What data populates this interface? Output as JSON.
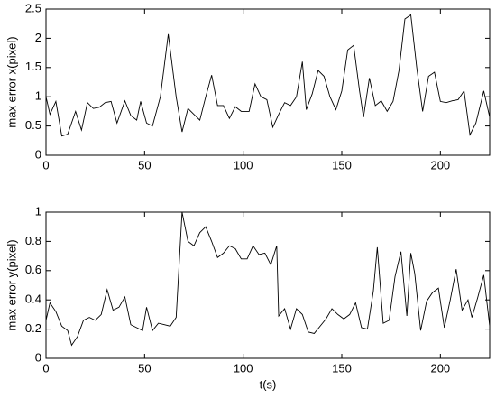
{
  "chart_data": [
    {
      "type": "line",
      "ylabel": "max error x(pixel)",
      "color": "#000000",
      "x": [
        0,
        2,
        5,
        8,
        11,
        15,
        18,
        21,
        24,
        27,
        30,
        33,
        36,
        40,
        43,
        46,
        48,
        51,
        54,
        58,
        62,
        66,
        69,
        72,
        75,
        78,
        81,
        84,
        87,
        90,
        93,
        96,
        99,
        103,
        106,
        109,
        112,
        115,
        118,
        121,
        124,
        127,
        130,
        132,
        135,
        138,
        141,
        144,
        147,
        150,
        153,
        156,
        159,
        161,
        164,
        167,
        170,
        173,
        176,
        179,
        182,
        185,
        188,
        191,
        194,
        197,
        200,
        203,
        206,
        209,
        212,
        215,
        218,
        222,
        225
      ],
      "values": [
        1.0,
        0.7,
        0.92,
        0.33,
        0.36,
        0.75,
        0.43,
        0.9,
        0.8,
        0.82,
        0.9,
        0.92,
        0.55,
        0.93,
        0.68,
        0.6,
        0.92,
        0.55,
        0.5,
        1.0,
        2.07,
        1.0,
        0.4,
        0.8,
        0.7,
        0.6,
        1.0,
        1.37,
        0.85,
        0.85,
        0.63,
        0.83,
        0.75,
        0.75,
        1.22,
        1.0,
        0.95,
        0.48,
        0.7,
        0.9,
        0.85,
        1.0,
        1.6,
        0.78,
        1.05,
        1.45,
        1.35,
        1.0,
        0.78,
        1.1,
        1.8,
        1.88,
        1.1,
        0.65,
        1.32,
        0.85,
        0.93,
        0.75,
        0.92,
        1.45,
        2.33,
        2.4,
        1.5,
        0.75,
        1.35,
        1.42,
        0.92,
        0.9,
        0.93,
        0.95,
        1.1,
        0.35,
        0.55,
        1.1,
        0.65
      ],
      "xlim": [
        0,
        225
      ],
      "ylim": [
        0,
        2.5
      ],
      "xticks": [
        0,
        50,
        100,
        150,
        200
      ],
      "yticks": [
        0,
        0.5,
        1,
        1.5,
        2,
        2.5
      ]
    },
    {
      "type": "line",
      "ylabel": "max error y(pixel)",
      "xlabel": "t(s)",
      "color": "#000000",
      "x": [
        0,
        2,
        5,
        8,
        11,
        13,
        16,
        19,
        22,
        25,
        28,
        31,
        34,
        37,
        40,
        43,
        46,
        49,
        51,
        54,
        57,
        60,
        63,
        66,
        69,
        72,
        75,
        78,
        81,
        84,
        87,
        90,
        93,
        96,
        99,
        102,
        105,
        108,
        111,
        114,
        117,
        118,
        121,
        124,
        127,
        130,
        133,
        136,
        139,
        142,
        145,
        148,
        151,
        154,
        157,
        160,
        163,
        166,
        168,
        171,
        174,
        177,
        180,
        183,
        185,
        187,
        190,
        193,
        196,
        199,
        202,
        205,
        208,
        211,
        214,
        216,
        219,
        222,
        225
      ],
      "values": [
        0.26,
        0.38,
        0.32,
        0.22,
        0.19,
        0.09,
        0.15,
        0.26,
        0.28,
        0.26,
        0.3,
        0.47,
        0.33,
        0.35,
        0.42,
        0.23,
        0.21,
        0.19,
        0.35,
        0.19,
        0.24,
        0.23,
        0.22,
        0.28,
        1.0,
        0.8,
        0.77,
        0.86,
        0.9,
        0.8,
        0.69,
        0.72,
        0.77,
        0.75,
        0.68,
        0.68,
        0.77,
        0.71,
        0.72,
        0.64,
        0.77,
        0.29,
        0.34,
        0.2,
        0.34,
        0.3,
        0.18,
        0.17,
        0.22,
        0.27,
        0.34,
        0.3,
        0.27,
        0.3,
        0.38,
        0.21,
        0.2,
        0.46,
        0.76,
        0.24,
        0.26,
        0.56,
        0.73,
        0.29,
        0.72,
        0.58,
        0.19,
        0.39,
        0.45,
        0.48,
        0.21,
        0.4,
        0.61,
        0.33,
        0.4,
        0.28,
        0.42,
        0.57,
        0.22
      ],
      "xlim": [
        0,
        225
      ],
      "ylim": [
        0,
        1
      ],
      "xticks": [
        0,
        50,
        100,
        150,
        200
      ],
      "yticks": [
        0,
        0.2,
        0.4,
        0.6,
        0.8,
        1
      ]
    }
  ]
}
